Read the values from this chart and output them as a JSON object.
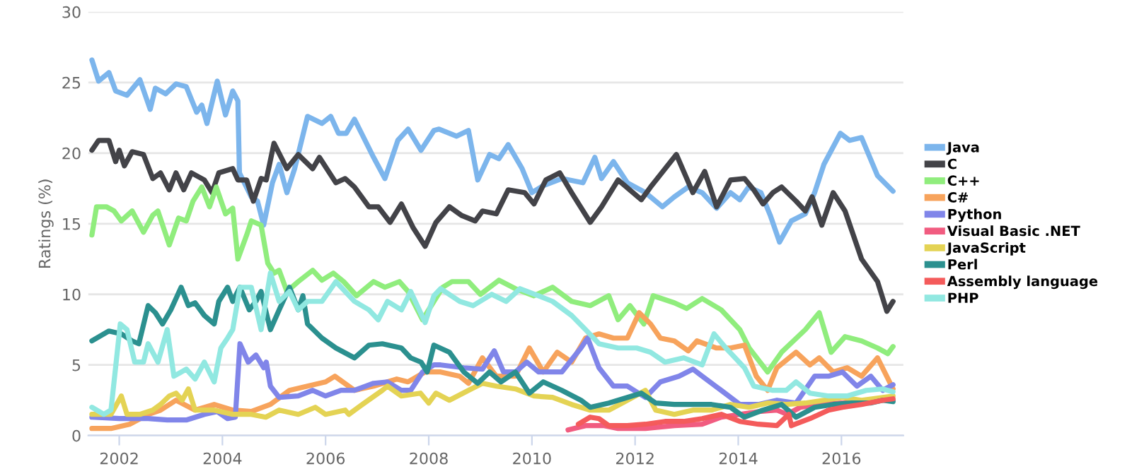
{
  "chart_data": {
    "type": "line",
    "ylabel": "Ratings (%)",
    "xlim": [
      2001.4,
      2017.2
    ],
    "xticks": [
      2002,
      2004,
      2006,
      2008,
      2010,
      2012,
      2014,
      2016
    ],
    "ylim": [
      0,
      30
    ],
    "yticks": [
      0,
      5,
      10,
      15,
      20,
      25,
      30
    ],
    "grid": "y",
    "legend": "right",
    "marker": "none",
    "line_style": "solid",
    "series": [
      {
        "name": "Java",
        "color": "#7cb5ec",
        "x": [
          2001.47,
          2001.6,
          2001.8,
          2001.93,
          2002.15,
          2002.4,
          2002.6,
          2002.7,
          2002.9,
          2003.1,
          2003.3,
          2003.5,
          2003.6,
          2003.7,
          2003.9,
          2004.06,
          2004.2,
          2004.3,
          2004.33,
          2004.56,
          2004.68,
          2004.8,
          2004.97,
          2005.1,
          2005.25,
          2005.4,
          2005.65,
          2005.93,
          2006.1,
          2006.25,
          2006.4,
          2006.56,
          2006.93,
          2007.15,
          2007.4,
          2007.6,
          2007.85,
          2008.1,
          2008.2,
          2008.54,
          2008.77,
          2008.95,
          2009.18,
          2009.36,
          2009.54,
          2009.81,
          2010.0,
          2010.22,
          2010.58,
          2010.99,
          2011.22,
          2011.35,
          2011.58,
          2011.85,
          2012.2,
          2012.53,
          2012.76,
          2013.03,
          2013.3,
          2013.58,
          2013.85,
          2014.03,
          2014.2,
          2014.44,
          2014.62,
          2014.8,
          2015.03,
          2015.3,
          2015.48,
          2015.66,
          2015.98,
          2016.16,
          2016.39,
          2016.7,
          2017.0
        ],
        "values": [
          26.6,
          25.1,
          25.7,
          24.4,
          24.1,
          25.2,
          23.1,
          24.6,
          24.2,
          24.9,
          24.7,
          22.9,
          23.4,
          22.1,
          25.1,
          22.7,
          24.4,
          23.7,
          18.6,
          16.9,
          16.6,
          14.9,
          17.9,
          19.2,
          17.2,
          18.9,
          22.6,
          22.1,
          22.6,
          21.4,
          21.4,
          22.4,
          19.7,
          18.2,
          20.9,
          21.7,
          20.2,
          21.6,
          21.7,
          21.2,
          21.6,
          18.1,
          19.9,
          19.6,
          20.6,
          18.9,
          17.2,
          17.7,
          18.2,
          17.9,
          19.7,
          18.2,
          19.4,
          17.9,
          17.2,
          16.2,
          16.9,
          17.6,
          17.2,
          16.1,
          17.2,
          16.7,
          17.6,
          17.2,
          15.6,
          13.7,
          15.2,
          15.7,
          17.2,
          19.2,
          21.4,
          20.9,
          21.1,
          18.4,
          17.3
        ]
      },
      {
        "name": "C",
        "color": "#434348",
        "x": [
          2001.47,
          2001.6,
          2001.8,
          2001.93,
          2002.0,
          2002.1,
          2002.25,
          2002.47,
          2002.65,
          2002.8,
          2002.97,
          2003.1,
          2003.25,
          2003.4,
          2003.65,
          2003.8,
          2003.93,
          2004.2,
          2004.3,
          2004.47,
          2004.6,
          2004.75,
          2004.85,
          2005.0,
          2005.25,
          2005.47,
          2005.75,
          2005.88,
          2006.2,
          2006.38,
          2006.56,
          2006.84,
          2007.02,
          2007.25,
          2007.47,
          2007.7,
          2007.93,
          2008.14,
          2008.4,
          2008.63,
          2008.9,
          2009.04,
          2009.31,
          2009.54,
          2009.86,
          2010.04,
          2010.27,
          2010.54,
          2010.77,
          2011.13,
          2011.35,
          2011.67,
          2012.12,
          2012.3,
          2012.8,
          2013.12,
          2013.35,
          2013.58,
          2013.85,
          2014.12,
          2014.3,
          2014.48,
          2014.67,
          2014.84,
          2015.12,
          2015.3,
          2015.43,
          2015.62,
          2015.84,
          2016.07,
          2016.39,
          2016.7,
          2016.88,
          2017.0
        ],
        "values": [
          20.2,
          20.9,
          20.9,
          19.4,
          20.2,
          19.1,
          20.1,
          19.9,
          18.2,
          18.6,
          17.4,
          18.6,
          17.4,
          18.6,
          18.1,
          17.2,
          18.6,
          18.9,
          18.1,
          18.1,
          16.6,
          18.2,
          18.1,
          20.7,
          18.9,
          19.9,
          18.9,
          19.7,
          17.9,
          18.2,
          17.6,
          16.2,
          16.2,
          15.1,
          16.4,
          14.7,
          13.4,
          15.1,
          16.2,
          15.6,
          15.2,
          15.9,
          15.7,
          17.4,
          17.2,
          16.4,
          18.1,
          18.6,
          17.2,
          15.1,
          16.2,
          18.1,
          16.7,
          17.6,
          19.9,
          17.2,
          18.7,
          16.2,
          18.1,
          18.2,
          17.4,
          16.4,
          17.2,
          17.6,
          16.6,
          15.9,
          16.9,
          14.9,
          17.2,
          15.9,
          12.5,
          10.9,
          8.8,
          9.5
        ]
      },
      {
        "name": "C++",
        "color": "#90ed7d",
        "x": [
          2001.47,
          2001.56,
          2001.75,
          2001.9,
          2002.04,
          2002.25,
          2002.47,
          2002.65,
          2002.75,
          2002.97,
          2003.15,
          2003.3,
          2003.43,
          2003.6,
          2003.75,
          2003.88,
          2004.06,
          2004.2,
          2004.3,
          2004.47,
          2004.56,
          2004.75,
          2004.88,
          2005.0,
          2005.1,
          2005.25,
          2005.47,
          2005.75,
          2005.93,
          2006.15,
          2006.35,
          2006.6,
          2006.93,
          2007.15,
          2007.43,
          2007.6,
          2007.88,
          2008.1,
          2008.27,
          2008.45,
          2008.77,
          2009.0,
          2009.36,
          2009.68,
          2010.04,
          2010.4,
          2010.77,
          2011.13,
          2011.49,
          2011.67,
          2011.9,
          2012.17,
          2012.35,
          2012.76,
          2013.0,
          2013.3,
          2013.67,
          2014.03,
          2014.21,
          2014.57,
          2014.84,
          2015.3,
          2015.57,
          2015.8,
          2016.07,
          2016.39,
          2016.7,
          2016.9,
          2017.0
        ],
        "values": [
          14.2,
          16.2,
          16.2,
          15.9,
          15.2,
          15.9,
          14.4,
          15.6,
          15.9,
          13.5,
          15.4,
          15.2,
          16.6,
          17.6,
          16.2,
          17.6,
          15.7,
          16.1,
          12.5,
          14.2,
          15.2,
          14.9,
          12.2,
          11.5,
          11.7,
          10.2,
          10.9,
          11.7,
          11.0,
          11.5,
          10.9,
          9.9,
          10.9,
          10.5,
          10.9,
          10.2,
          8.2,
          9.5,
          10.5,
          10.9,
          10.9,
          10.0,
          11.0,
          10.4,
          9.9,
          10.5,
          9.5,
          9.2,
          9.9,
          8.2,
          9.2,
          7.9,
          9.9,
          9.4,
          9.0,
          9.7,
          8.9,
          7.5,
          6.2,
          4.5,
          5.9,
          7.5,
          8.7,
          5.9,
          7.0,
          6.7,
          6.2,
          5.8,
          6.3
        ]
      },
      {
        "name": "C#",
        "color": "#f7a35c",
        "x": [
          2001.47,
          2001.84,
          2002.2,
          2002.56,
          2002.8,
          2003.1,
          2003.47,
          2003.84,
          2004.2,
          2004.56,
          2004.93,
          2005.3,
          2005.65,
          2006.0,
          2006.18,
          2006.56,
          2006.93,
          2007.38,
          2007.6,
          2007.93,
          2008.23,
          2008.6,
          2008.77,
          2009.04,
          2009.31,
          2009.68,
          2009.95,
          2010.22,
          2010.49,
          2010.77,
          2011.04,
          2011.3,
          2011.58,
          2011.85,
          2012.08,
          2012.3,
          2012.49,
          2012.76,
          2013.03,
          2013.2,
          2013.57,
          2013.85,
          2014.12,
          2014.35,
          2014.57,
          2014.75,
          2015.12,
          2015.39,
          2015.57,
          2015.84,
          2016.11,
          2016.39,
          2016.7,
          2017.0
        ],
        "values": [
          0.5,
          0.5,
          0.8,
          1.5,
          1.8,
          2.5,
          1.8,
          2.2,
          1.8,
          1.7,
          2.2,
          3.2,
          3.5,
          3.8,
          4.2,
          3.2,
          3.5,
          4.0,
          3.8,
          4.5,
          4.5,
          4.2,
          3.7,
          5.5,
          4.2,
          4.2,
          6.2,
          4.5,
          5.9,
          5.2,
          6.9,
          7.2,
          6.9,
          6.9,
          8.7,
          7.9,
          6.9,
          6.7,
          6.0,
          6.7,
          6.2,
          6.2,
          6.4,
          4.2,
          3.2,
          4.8,
          5.9,
          5.0,
          5.5,
          4.5,
          4.8,
          4.2,
          5.5,
          3.3
        ]
      },
      {
        "name": "Python",
        "color": "#8085e9",
        "x": [
          2001.47,
          2002.0,
          2002.56,
          2002.93,
          2003.3,
          2003.65,
          2003.9,
          2004.1,
          2004.25,
          2004.34,
          2004.5,
          2004.65,
          2004.8,
          2004.85,
          2004.93,
          2005.1,
          2005.47,
          2005.75,
          2006.0,
          2006.3,
          2006.56,
          2006.93,
          2007.2,
          2007.47,
          2007.65,
          2007.88,
          2008.1,
          2008.23,
          2008.68,
          2009.04,
          2009.27,
          2009.45,
          2009.68,
          2009.9,
          2010.13,
          2010.58,
          2010.95,
          2011.08,
          2011.3,
          2011.58,
          2011.85,
          2012.2,
          2012.49,
          2012.85,
          2013.12,
          2013.3,
          2013.67,
          2014.03,
          2014.39,
          2014.75,
          2015.12,
          2015.48,
          2015.75,
          2016.02,
          2016.3,
          2016.57,
          2016.8,
          2017.0
        ],
        "values": [
          1.3,
          1.2,
          1.2,
          1.1,
          1.1,
          1.5,
          1.7,
          1.2,
          1.3,
          6.5,
          5.2,
          5.7,
          4.8,
          5.2,
          3.5,
          2.7,
          2.8,
          3.2,
          2.8,
          3.2,
          3.2,
          3.7,
          3.8,
          3.2,
          3.2,
          4.5,
          5.0,
          5.0,
          4.8,
          4.7,
          6.0,
          4.5,
          4.5,
          5.2,
          4.5,
          4.5,
          6.2,
          6.9,
          4.8,
          3.5,
          3.5,
          2.7,
          3.8,
          4.2,
          4.7,
          4.2,
          3.2,
          2.2,
          2.2,
          2.5,
          2.3,
          4.2,
          4.2,
          4.5,
          3.5,
          4.2,
          3.2,
          3.6
        ]
      },
      {
        "name": "Visual Basic .NET",
        "color": "#f15c80",
        "x": [
          2010.7,
          2011.04,
          2011.4,
          2011.67,
          2012.2,
          2012.76,
          2013.3,
          2013.67,
          2014.03,
          2014.4,
          2014.75,
          2014.95,
          2015.2,
          2015.57,
          2016.02,
          2016.48,
          2016.8,
          2017.0
        ],
        "values": [
          0.4,
          0.7,
          0.7,
          0.5,
          0.5,
          0.7,
          0.8,
          1.3,
          1.5,
          1.7,
          1.8,
          1.5,
          2.0,
          2.2,
          2.3,
          2.5,
          2.5,
          2.5
        ]
      },
      {
        "name": "JavaScript",
        "color": "#e4d354",
        "x": [
          2001.47,
          2001.84,
          2002.04,
          2002.15,
          2002.4,
          2002.65,
          2002.8,
          2002.97,
          2003.1,
          2003.22,
          2003.34,
          2003.47,
          2003.84,
          2004.2,
          2004.56,
          2004.84,
          2005.1,
          2005.47,
          2005.8,
          2006.0,
          2006.38,
          2006.45,
          2006.75,
          2007.1,
          2007.2,
          2007.47,
          2007.84,
          2008.0,
          2008.14,
          2008.4,
          2008.77,
          2009.04,
          2009.31,
          2009.68,
          2010.04,
          2010.4,
          2010.77,
          2011.13,
          2011.49,
          2011.85,
          2012.2,
          2012.4,
          2012.76,
          2013.12,
          2013.48,
          2013.85,
          2014.21,
          2014.57,
          2014.93,
          2015.3,
          2015.66,
          2016.02,
          2016.39,
          2016.8,
          2017.0
        ],
        "values": [
          1.5,
          1.5,
          2.8,
          1.5,
          1.5,
          1.8,
          2.2,
          2.8,
          3.0,
          2.5,
          3.3,
          1.8,
          1.8,
          1.5,
          1.5,
          1.3,
          1.8,
          1.5,
          2.0,
          1.5,
          1.8,
          1.5,
          2.3,
          3.2,
          3.5,
          2.8,
          3.0,
          2.3,
          3.0,
          2.5,
          3.2,
          3.7,
          3.5,
          3.3,
          2.8,
          2.7,
          2.2,
          1.8,
          1.8,
          2.5,
          3.2,
          1.8,
          1.5,
          1.8,
          1.8,
          2.2,
          2.0,
          2.3,
          2.2,
          2.3,
          2.5,
          2.7,
          2.5,
          2.7,
          2.8
        ]
      },
      {
        "name": "Perl",
        "color": "#2b908f",
        "x": [
          2001.47,
          2001.8,
          2002.04,
          2002.25,
          2002.38,
          2002.56,
          2002.7,
          2002.84,
          2003.0,
          2003.2,
          2003.34,
          2003.47,
          2003.65,
          2003.84,
          2003.93,
          2004.1,
          2004.2,
          2004.34,
          2004.52,
          2004.65,
          2004.75,
          2004.93,
          2005.1,
          2005.3,
          2005.47,
          2005.56,
          2005.65,
          2005.93,
          2006.2,
          2006.56,
          2006.84,
          2007.1,
          2007.47,
          2007.65,
          2007.85,
          2007.97,
          2008.1,
          2008.4,
          2008.68,
          2008.95,
          2009.18,
          2009.4,
          2009.68,
          2009.95,
          2010.22,
          2010.58,
          2010.95,
          2011.13,
          2011.49,
          2011.85,
          2012.12,
          2012.4,
          2012.76,
          2013.12,
          2013.48,
          2013.85,
          2014.12,
          2014.48,
          2014.84,
          2015.12,
          2015.48,
          2015.84,
          2016.2,
          2016.56,
          2016.8,
          2017.0
        ],
        "values": [
          6.7,
          7.4,
          7.2,
          6.7,
          6.5,
          9.2,
          8.7,
          7.9,
          8.9,
          10.5,
          9.2,
          9.4,
          8.5,
          7.9,
          9.5,
          10.5,
          9.5,
          10.5,
          8.9,
          9.5,
          10.2,
          7.5,
          8.9,
          10.5,
          8.9,
          9.9,
          7.9,
          6.9,
          6.2,
          5.5,
          6.4,
          6.5,
          6.2,
          5.5,
          5.2,
          4.5,
          6.4,
          5.9,
          4.5,
          3.7,
          4.5,
          3.8,
          4.5,
          3.0,
          3.8,
          3.2,
          2.5,
          2.0,
          2.3,
          2.7,
          3.0,
          2.3,
          2.2,
          2.2,
          2.2,
          2.0,
          1.3,
          1.8,
          2.2,
          1.3,
          2.0,
          2.2,
          2.3,
          2.3,
          2.5,
          2.4
        ]
      },
      {
        "name": "Assembly language",
        "color": "#f45b5b",
        "x": [
          2010.9,
          2011.13,
          2011.3,
          2011.49,
          2011.85,
          2012.2,
          2012.58,
          2012.94,
          2013.3,
          2013.67,
          2014.03,
          2014.39,
          2014.75,
          2014.98,
          2015.03,
          2015.39,
          2015.75,
          2016.02,
          2016.39,
          2016.8,
          2017.0
        ],
        "values": [
          0.8,
          1.3,
          1.2,
          0.7,
          0.7,
          0.8,
          1.0,
          1.0,
          1.2,
          1.5,
          1.0,
          0.8,
          0.7,
          1.5,
          0.7,
          1.2,
          1.8,
          2.0,
          2.2,
          2.5,
          2.6
        ]
      },
      {
        "name": "PHP",
        "color": "#91e8e1",
        "x": [
          2001.47,
          2001.7,
          2001.84,
          2002.02,
          2002.15,
          2002.3,
          2002.47,
          2002.56,
          2002.75,
          2002.93,
          2003.06,
          2003.3,
          2003.47,
          2003.65,
          2003.84,
          2003.97,
          2004.1,
          2004.2,
          2004.34,
          2004.56,
          2004.75,
          2004.93,
          2005.1,
          2005.3,
          2005.47,
          2005.65,
          2005.93,
          2006.2,
          2006.56,
          2006.84,
          2007.02,
          2007.2,
          2007.47,
          2007.65,
          2007.93,
          2008.1,
          2008.23,
          2008.6,
          2008.86,
          2009.22,
          2009.5,
          2009.77,
          2010.13,
          2010.4,
          2010.77,
          2011.04,
          2011.3,
          2011.67,
          2012.03,
          2012.3,
          2012.58,
          2012.94,
          2013.3,
          2013.53,
          2013.76,
          2014.12,
          2014.3,
          2014.67,
          2014.93,
          2015.12,
          2015.39,
          2015.75,
          2016.11,
          2016.48,
          2016.8,
          2017.0
        ],
        "values": [
          2.0,
          1.5,
          1.8,
          7.9,
          7.5,
          5.2,
          5.2,
          6.5,
          5.2,
          7.5,
          4.2,
          4.7,
          4.0,
          5.2,
          3.8,
          6.2,
          6.9,
          7.5,
          10.5,
          10.5,
          7.5,
          11.5,
          9.5,
          10.2,
          8.9,
          9.5,
          9.5,
          10.9,
          9.5,
          8.9,
          8.2,
          9.5,
          8.9,
          10.2,
          8.0,
          9.9,
          10.4,
          9.5,
          9.2,
          10.0,
          9.5,
          10.4,
          9.9,
          9.5,
          8.5,
          7.5,
          6.5,
          6.2,
          6.2,
          5.9,
          5.2,
          5.5,
          5.0,
          7.2,
          6.2,
          4.8,
          3.5,
          3.2,
          3.2,
          3.8,
          3.0,
          2.8,
          2.8,
          3.2,
          3.3,
          3.1
        ]
      }
    ]
  }
}
